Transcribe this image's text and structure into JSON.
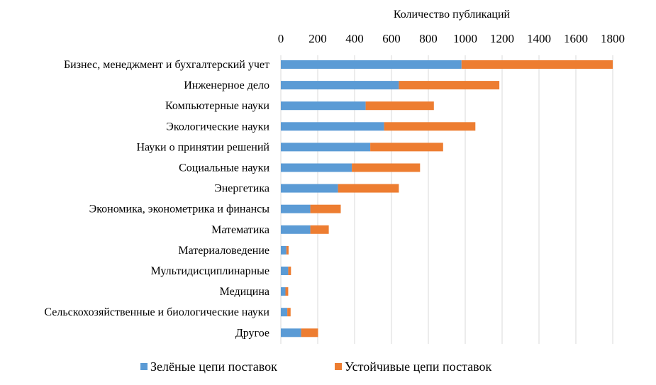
{
  "chart_data": {
    "type": "bar",
    "orientation": "horizontal",
    "stacked": true,
    "xlabel": "Количество публикаций",
    "xlim": [
      0,
      1800
    ],
    "xticks": [
      0,
      200,
      400,
      600,
      800,
      1000,
      1200,
      1400,
      1600,
      1800
    ],
    "grid": true,
    "legend_position": "bottom",
    "categories": [
      "Бизнес, менеджмент и бухгалтерский учет",
      "Инженерное дело",
      "Компьютерные науки",
      "Экологические науки",
      "Науки о принятии решений",
      "Социальные науки",
      "Энергетика",
      "Экономика, эконометрика и финансы",
      "Математика",
      "Материаловедение",
      "Мультидисциплинарные",
      "Медицина",
      "Сельскохозяйственные и биологические науки",
      "Другое"
    ],
    "series": [
      {
        "name": "Зелёные цепи поставок",
        "color": "#5b9bd5",
        "values": [
          980,
          640,
          460,
          560,
          485,
          385,
          310,
          160,
          160,
          30,
          40,
          25,
          35,
          110
        ]
      },
      {
        "name": "Устойчивые цепи поставок",
        "color": "#ed7d31",
        "values": [
          820,
          545,
          370,
          495,
          395,
          370,
          330,
          165,
          100,
          12,
          15,
          15,
          18,
          92
        ]
      }
    ]
  }
}
